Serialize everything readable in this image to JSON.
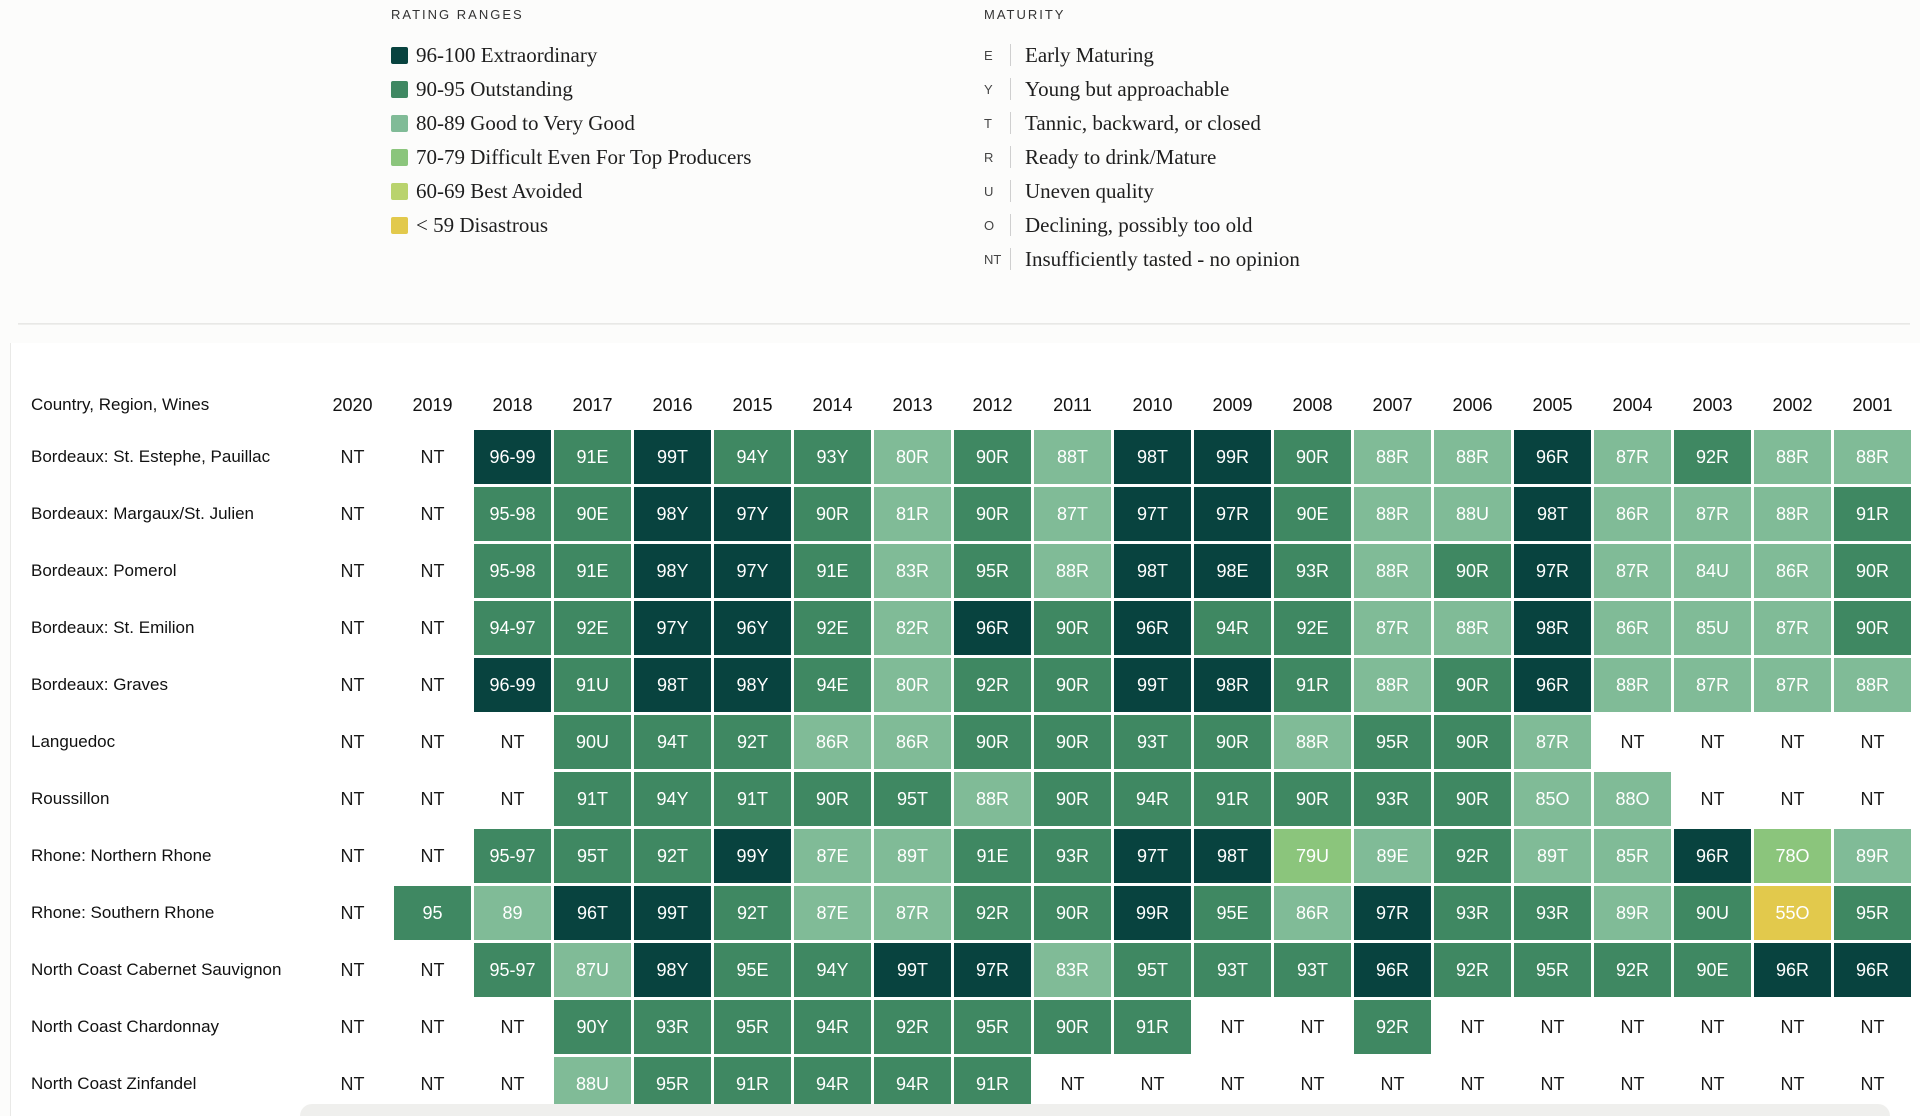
{
  "colors": {
    "r96_100": "#08433f",
    "r90_95": "#3f8862",
    "r80_89": "#80bb97",
    "r70_79": "#8bc57c",
    "r60_69": "#b9d36d",
    "r_lt59": "#e2c94c"
  },
  "rating_legend": {
    "heading": "RATING RANGES",
    "items": [
      {
        "label": "96-100 Extraordinary",
        "color": "#08433f"
      },
      {
        "label": "90-95 Outstanding",
        "color": "#3f8862"
      },
      {
        "label": "80-89 Good to Very Good",
        "color": "#80bb97"
      },
      {
        "label": "70-79 Difficult Even For Top Producers",
        "color": "#8bc57c"
      },
      {
        "label": "60-69 Best Avoided",
        "color": "#b9d36d"
      },
      {
        "label": "< 59 Disastrous",
        "color": "#e2c94c"
      }
    ]
  },
  "maturity_legend": {
    "heading": "MATURITY",
    "items": [
      {
        "code": "E",
        "label": "Early Maturing"
      },
      {
        "code": "Y",
        "label": "Young but approachable"
      },
      {
        "code": "T",
        "label": "Tannic, backward, or closed"
      },
      {
        "code": "R",
        "label": "Ready to drink/Mature"
      },
      {
        "code": "U",
        "label": "Uneven quality"
      },
      {
        "code": "O",
        "label": "Declining, possibly too old"
      },
      {
        "code": "NT",
        "label": "Insufficiently tasted - no opinion"
      }
    ]
  },
  "chart_data": {
    "type": "heatmap",
    "row_header": "Country, Region, Wines",
    "years": [
      "2020",
      "2019",
      "2018",
      "2017",
      "2016",
      "2015",
      "2014",
      "2013",
      "2012",
      "2011",
      "2010",
      "2009",
      "2008",
      "2007",
      "2006",
      "2005",
      "2004",
      "2003",
      "2002",
      "2001"
    ],
    "rows": [
      {
        "name": "Bordeaux: St. Estephe, Pauillac",
        "values": [
          "NT",
          "NT",
          "96-99",
          "91E",
          "99T",
          "94Y",
          "93Y",
          "80R",
          "90R",
          "88T",
          "98T",
          "99R",
          "90R",
          "88R",
          "88R",
          "96R",
          "87R",
          "92R",
          "88R",
          "88R"
        ]
      },
      {
        "name": "Bordeaux: Margaux/St. Julien",
        "values": [
          "NT",
          "NT",
          "95-98",
          "90E",
          "98Y",
          "97Y",
          "90R",
          "81R",
          "90R",
          "87T",
          "97T",
          "97R",
          "90E",
          "88R",
          "88U",
          "98T",
          "86R",
          "87R",
          "88R",
          "91R"
        ]
      },
      {
        "name": "Bordeaux: Pomerol",
        "values": [
          "NT",
          "NT",
          "95-98",
          "91E",
          "98Y",
          "97Y",
          "91E",
          "83R",
          "95R",
          "88R",
          "98T",
          "98E",
          "93R",
          "88R",
          "90R",
          "97R",
          "87R",
          "84U",
          "86R",
          "90R"
        ]
      },
      {
        "name": "Bordeaux: St. Emilion",
        "values": [
          "NT",
          "NT",
          "94-97",
          "92E",
          "97Y",
          "96Y",
          "92E",
          "82R",
          "96R",
          "90R",
          "96R",
          "94R",
          "92E",
          "87R",
          "88R",
          "98R",
          "86R",
          "85U",
          "87R",
          "90R"
        ]
      },
      {
        "name": "Bordeaux: Graves",
        "values": [
          "NT",
          "NT",
          "96-99",
          "91U",
          "98T",
          "98Y",
          "94E",
          "80R",
          "92R",
          "90R",
          "99T",
          "98R",
          "91R",
          "88R",
          "90R",
          "96R",
          "88R",
          "87R",
          "87R",
          "88R"
        ]
      },
      {
        "name": "Languedoc",
        "values": [
          "NT",
          "NT",
          "NT",
          "90U",
          "94T",
          "92T",
          "86R",
          "86R",
          "90R",
          "90R",
          "93T",
          "90R",
          "88R",
          "95R",
          "90R",
          "87R",
          "NT",
          "NT",
          "NT",
          "NT"
        ]
      },
      {
        "name": "Roussillon",
        "values": [
          "NT",
          "NT",
          "NT",
          "91T",
          "94Y",
          "91T",
          "90R",
          "95T",
          "88R",
          "90R",
          "94R",
          "91R",
          "90R",
          "93R",
          "90R",
          "85O",
          "88O",
          "NT",
          "NT",
          "NT"
        ]
      },
      {
        "name": "Rhone: Northern Rhone",
        "values": [
          "NT",
          "NT",
          "95-97",
          "95T",
          "92T",
          "99Y",
          "87E",
          "89T",
          "91E",
          "93R",
          "97T",
          "98T",
          "79U",
          "89E",
          "92R",
          "89T",
          "85R",
          "96R",
          "78O",
          "89R"
        ]
      },
      {
        "name": "Rhone: Southern Rhone",
        "values": [
          "NT",
          "95",
          "89",
          "96T",
          "99T",
          "92T",
          "87E",
          "87R",
          "92R",
          "90R",
          "99R",
          "95E",
          "86R",
          "97R",
          "93R",
          "93R",
          "89R",
          "90U",
          "55O",
          "95R"
        ]
      },
      {
        "name": "North Coast Cabernet Sauvignon",
        "values": [
          "NT",
          "NT",
          "95-97",
          "87U",
          "98Y",
          "95E",
          "94Y",
          "99T",
          "97R",
          "83R",
          "95T",
          "93T",
          "93T",
          "96R",
          "92R",
          "95R",
          "92R",
          "90E",
          "96R",
          "96R"
        ]
      },
      {
        "name": "North Coast Chardonnay",
        "values": [
          "NT",
          "NT",
          "NT",
          "90Y",
          "93R",
          "95R",
          "94R",
          "92R",
          "95R",
          "90R",
          "91R",
          "NT",
          "NT",
          "92R",
          "NT",
          "NT",
          "NT",
          "NT",
          "NT",
          "NT"
        ]
      },
      {
        "name": "North Coast Zinfandel",
        "values": [
          "NT",
          "NT",
          "NT",
          "88U",
          "95R",
          "91R",
          "94R",
          "94R",
          "91R",
          "NT",
          "NT",
          "NT",
          "NT",
          "NT",
          "NT",
          "NT",
          "NT",
          "NT",
          "NT",
          "NT"
        ]
      }
    ]
  }
}
